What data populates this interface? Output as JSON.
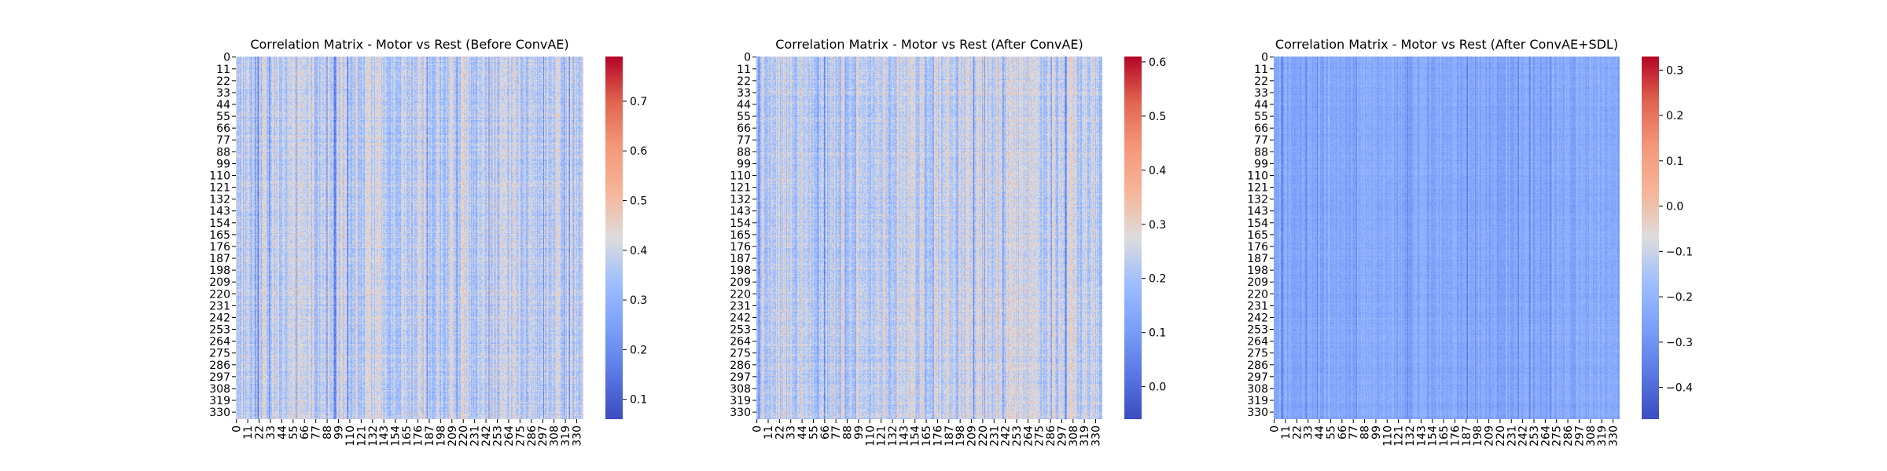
{
  "chart_data": [
    {
      "type": "heatmap",
      "title": "Correlation Matrix - Motor vs Rest (Before ConvAE)",
      "xlabel": "",
      "ylabel": "",
      "n": 337,
      "ticks": [
        "0",
        "11",
        "22",
        "33",
        "44",
        "55",
        "66",
        "77",
        "88",
        "99",
        "110",
        "121",
        "132",
        "143",
        "154",
        "165",
        "176",
        "187",
        "198",
        "209",
        "220",
        "231",
        "242",
        "253",
        "264",
        "275",
        "286",
        "297",
        "308",
        "319",
        "330"
      ],
      "colorbar": {
        "min": 0.06,
        "max": 0.79,
        "ticks": [
          "0.1",
          "0.2",
          "0.3",
          "0.4",
          "0.5",
          "0.6",
          "0.7"
        ],
        "tick_values": [
          0.1,
          0.2,
          0.3,
          0.4,
          0.5,
          0.6,
          0.7
        ]
      },
      "value_profile": {
        "mean": 0.38,
        "spread": 0.13
      },
      "colormap": "coolwarm"
    },
    {
      "type": "heatmap",
      "title": "Correlation Matrix - Motor vs Rest (After ConvAE)",
      "xlabel": "",
      "ylabel": "",
      "n": 337,
      "ticks": [
        "0",
        "11",
        "22",
        "33",
        "44",
        "55",
        "66",
        "77",
        "88",
        "99",
        "110",
        "121",
        "132",
        "143",
        "154",
        "165",
        "176",
        "187",
        "198",
        "209",
        "220",
        "231",
        "242",
        "253",
        "264",
        "275",
        "286",
        "297",
        "308",
        "319",
        "330"
      ],
      "colorbar": {
        "min": -0.06,
        "max": 0.61,
        "ticks": [
          "0.0",
          "0.1",
          "0.2",
          "0.3",
          "0.4",
          "0.5",
          "0.6"
        ],
        "tick_values": [
          0.0,
          0.1,
          0.2,
          0.3,
          0.4,
          0.5,
          0.6
        ]
      },
      "value_profile": {
        "mean": 0.24,
        "spread": 0.12
      },
      "colormap": "coolwarm"
    },
    {
      "type": "heatmap",
      "title": "Correlation Matrix - Motor vs Rest (After ConvAE+SDL)",
      "xlabel": "",
      "ylabel": "",
      "n": 337,
      "ticks": [
        "0",
        "11",
        "22",
        "33",
        "44",
        "55",
        "66",
        "77",
        "88",
        "99",
        "110",
        "121",
        "132",
        "143",
        "154",
        "165",
        "176",
        "187",
        "198",
        "209",
        "220",
        "231",
        "242",
        "253",
        "264",
        "275",
        "286",
        "297",
        "308",
        "319",
        "330"
      ],
      "colorbar": {
        "min": -0.47,
        "max": 0.33,
        "ticks": [
          "−0.4",
          "−0.3",
          "−0.2",
          "−0.1",
          "0.0",
          "0.1",
          "0.2",
          "0.3"
        ],
        "tick_values": [
          -0.4,
          -0.3,
          -0.2,
          -0.1,
          0.0,
          0.1,
          0.2,
          0.3
        ]
      },
      "value_profile": {
        "mean": -0.24,
        "spread": 0.07
      },
      "colormap": "coolwarm"
    }
  ]
}
